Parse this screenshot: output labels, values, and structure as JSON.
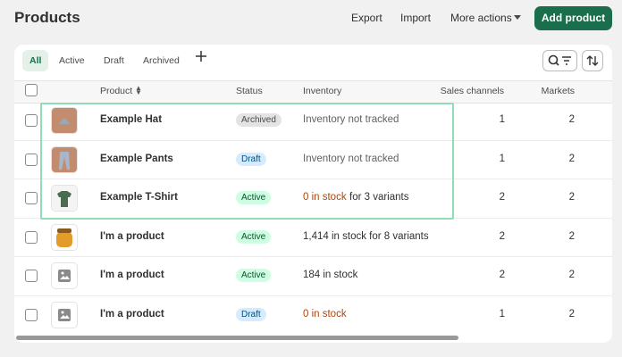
{
  "header": {
    "title": "Products",
    "actions": [
      "Export",
      "Import",
      "More actions"
    ],
    "primary_action": "Add product"
  },
  "tabs": [
    "All",
    "Active",
    "Draft",
    "Archived"
  ],
  "table": {
    "columns": [
      "Product",
      "Status",
      "Inventory",
      "Sales channels",
      "Markets"
    ],
    "rows": [
      {
        "product": "Example Hat",
        "status": "Archived",
        "inventory": "Inventory not tracked",
        "sales_channels": "1",
        "markets": "2"
      },
      {
        "product": "Example Pants",
        "status": "Draft",
        "inventory": "Inventory not tracked",
        "sales_channels": "1",
        "markets": "2"
      },
      {
        "product": "Example T-Shirt",
        "status": "Active",
        "inventory_alert": "0 in stock",
        "inventory": "for 3 variants",
        "sales_channels": "2",
        "markets": "2"
      },
      {
        "product": "I'm a product",
        "status": "Active",
        "inventory": "1,414 in stock for 8 variants",
        "sales_channels": "2",
        "markets": "2"
      },
      {
        "product": "I'm a product",
        "status": "Active",
        "inventory": "184 in stock",
        "sales_channels": "2",
        "markets": "2"
      },
      {
        "product": "I'm a product",
        "status": "Draft",
        "inventory_alert": "0 in stock",
        "sales_channels": "1",
        "markets": "2"
      }
    ]
  }
}
